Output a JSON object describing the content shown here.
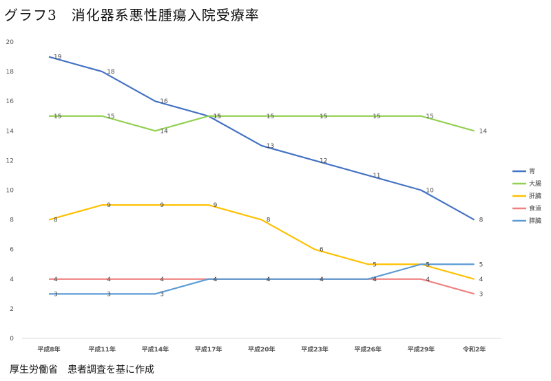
{
  "title": "グラフ3　消化器系悪性腫瘍入院受療率",
  "source": "厚生労働省　患者調査を基に作成",
  "chart_data": {
    "type": "line",
    "title": "グラフ3　消化器系悪性腫瘍入院受療率",
    "xlabel": "",
    "ylabel": "",
    "ylim": [
      0,
      20
    ],
    "yticks": [
      0,
      2,
      4,
      6,
      8,
      10,
      12,
      14,
      16,
      18,
      20
    ],
    "grid": false,
    "legend_position": "right",
    "categories": [
      "平成8年",
      "平成11年",
      "平成14年",
      "平成17年",
      "平成20年",
      "平成23年",
      "平成26年",
      "平成29年",
      "令和2年"
    ],
    "series": [
      {
        "name": "胃",
        "color": "#4472c4",
        "values": [
          19,
          18,
          16,
          15,
          13,
          12,
          11,
          10,
          8
        ]
      },
      {
        "name": "大腸",
        "color": "#92d050",
        "values": [
          15,
          15,
          14,
          15,
          15,
          15,
          15,
          15,
          14
        ]
      },
      {
        "name": "肝臓",
        "color": "#ffc000",
        "values": [
          8,
          9,
          9,
          9,
          8,
          6,
          5,
          5,
          4
        ]
      },
      {
        "name": "食道",
        "color": "#f08080",
        "values": [
          4,
          4,
          4,
          4,
          4,
          4,
          4,
          4,
          3
        ]
      },
      {
        "name": "膵臓",
        "color": "#5b9bd5",
        "values": [
          3,
          3,
          3,
          4,
          4,
          4,
          4,
          5,
          5
        ]
      }
    ]
  }
}
